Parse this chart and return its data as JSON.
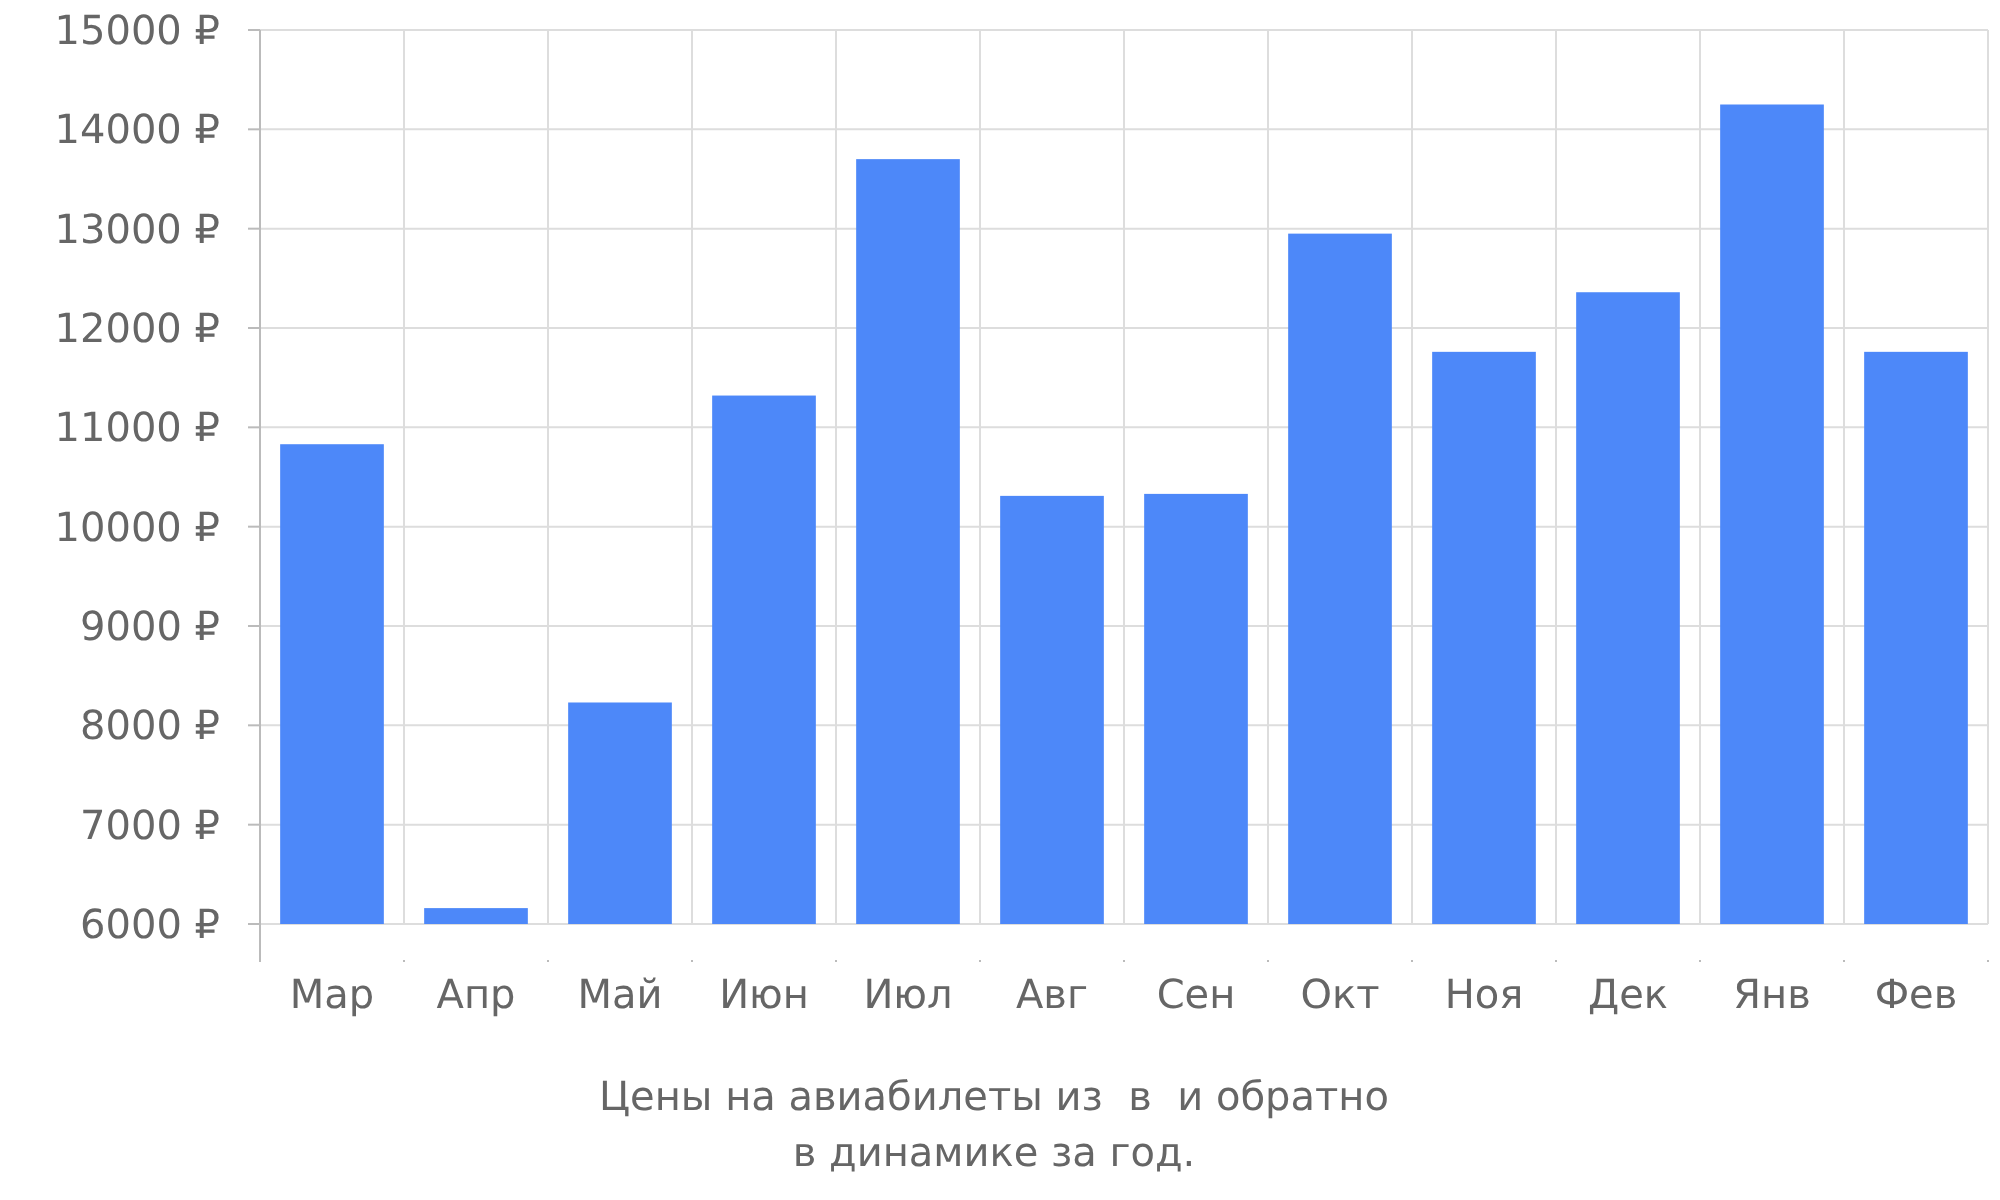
{
  "chart_data": {
    "type": "bar",
    "xlabel": "Цены на авиабилеты из  в  и обратно",
    "annotations": [
      "в динамике за год."
    ],
    "categories": [
      "Мар",
      "Апр",
      "Май",
      "Июн",
      "Июл",
      "Авг",
      "Сен",
      "Окт",
      "Ноя",
      "Дек",
      "Янв",
      "Фев"
    ],
    "values": [
      10830,
      6160,
      8230,
      11320,
      13700,
      10310,
      10330,
      12950,
      11760,
      12360,
      14250,
      11760
    ],
    "color": "#4d88f9",
    "ylim": [
      6000,
      15000
    ],
    "yticks": [
      {
        "value": 6000,
        "label": "6000 ₽"
      },
      {
        "value": 7000,
        "label": "7000 ₽"
      },
      {
        "value": 8000,
        "label": "8000 ₽"
      },
      {
        "value": 9000,
        "label": "9000 ₽"
      },
      {
        "value": 10000,
        "label": "10000 ₽"
      },
      {
        "value": 11000,
        "label": "11000 ₽"
      },
      {
        "value": 12000,
        "label": "12000 ₽"
      },
      {
        "value": 13000,
        "label": "13000 ₽"
      },
      {
        "value": 14000,
        "label": "14000 ₽"
      },
      {
        "value": 15000,
        "label": "15000 ₽"
      }
    ],
    "grid": true
  }
}
